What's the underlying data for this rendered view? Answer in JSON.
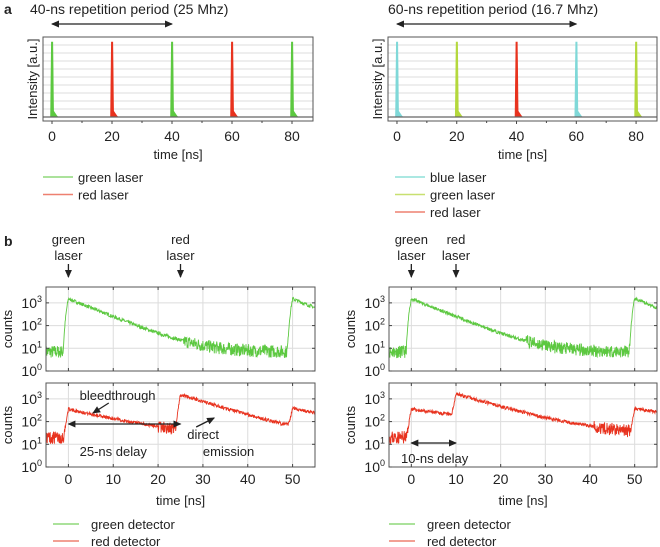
{
  "panel_labels": {
    "a": "a",
    "b": "b"
  },
  "colors": {
    "green": "#5cc840",
    "red": "#e8321e",
    "blue": "#7fd8d8",
    "lime": "#b4d83c",
    "grid": "#dcdcdc",
    "frame": "#555555"
  },
  "chart_data": [
    {
      "id": "a-left",
      "type": "line",
      "title": "40-ns repetition period (25 Mhz)",
      "xlabel": "time [ns]",
      "ylabel": "Intensity [a.u.]",
      "xlim": [
        -3,
        87
      ],
      "xticks": [
        0,
        20,
        40,
        60,
        80
      ],
      "xtick_labels": [
        "0",
        "20",
        "40",
        "60",
        "80"
      ],
      "period_arrow": [
        0,
        40
      ],
      "pulses": [
        {
          "t": 0,
          "series": "green laser"
        },
        {
          "t": 20,
          "series": "red laser"
        },
        {
          "t": 40,
          "series": "green laser"
        },
        {
          "t": 60,
          "series": "red laser"
        },
        {
          "t": 80,
          "series": "green laser"
        }
      ],
      "legend": [
        {
          "label": "green laser",
          "color": "#8fd87a"
        },
        {
          "label": "red laser",
          "color": "#ee8070"
        }
      ],
      "grid": true
    },
    {
      "id": "a-right",
      "type": "line",
      "title": "60-ns repetition period (16.7 Mhz)",
      "xlabel": "time [ns]",
      "ylabel": "Intensity [a.u.]",
      "xlim": [
        -3,
        87
      ],
      "xticks": [
        0,
        20,
        40,
        60,
        80
      ],
      "xtick_labels": [
        "0",
        "20",
        "40",
        "60",
        "80"
      ],
      "period_arrow": [
        0,
        60
      ],
      "pulses": [
        {
          "t": 0,
          "series": "blue laser"
        },
        {
          "t": 20,
          "series": "green laser"
        },
        {
          "t": 40,
          "series": "red laser"
        },
        {
          "t": 60,
          "series": "blue laser"
        },
        {
          "t": 80,
          "series": "green laser"
        }
      ],
      "legend": [
        {
          "label": "blue laser",
          "color": "#8fe0d8"
        },
        {
          "label": "green laser",
          "color": "#c8e070"
        },
        {
          "label": "red laser",
          "color": "#ee8070"
        }
      ],
      "grid": true
    },
    {
      "id": "b-left",
      "type": "line",
      "xlabel": "time [ns]",
      "ylabel": "counts",
      "yscale": "log",
      "ylim": [
        1,
        5000
      ],
      "yticks": [
        1,
        10,
        100,
        1000
      ],
      "ytick_labels": [
        "10^0",
        "10^1",
        "10^2",
        "10^3"
      ],
      "xlim": [
        -5,
        55
      ],
      "xticks": [
        0,
        10,
        20,
        30,
        40,
        50
      ],
      "xtick_labels": [
        "0",
        "10",
        "20",
        "30",
        "40",
        "50"
      ],
      "laser_markers": [
        {
          "label_line1": "green",
          "label_line2": "laser",
          "t": 0
        },
        {
          "label_line1": "red",
          "label_line2": "laser",
          "t": 25
        }
      ],
      "green_detector": {
        "pulses": [
          {
            "t": 0,
            "peak": 1500,
            "tau": 5.5
          },
          {
            "t": 50,
            "peak": 1500,
            "tau": 5.5
          }
        ],
        "background": 7
      },
      "red_detector": {
        "pulses": [
          {
            "t": 0,
            "peak": 330,
            "tau": 9.5
          },
          {
            "t": 25,
            "peak": 1500,
            "tau": 7
          },
          {
            "t": 50,
            "peak": 330,
            "tau": 9.5
          }
        ],
        "background": 20
      },
      "annotations": {
        "bleedthrough": "bleedthrough",
        "delay": "25-ns delay",
        "direct_1": "direct",
        "direct_2": "emission",
        "delay_arrow": [
          0,
          25
        ]
      },
      "legend": [
        {
          "label": "green detector",
          "color": "#8fd87a"
        },
        {
          "label": "red detector",
          "color": "#ee8070"
        }
      ],
      "grid": true
    },
    {
      "id": "b-right",
      "type": "line",
      "xlabel": "time [ns]",
      "ylabel": "counts",
      "yscale": "log",
      "ylim": [
        1,
        5000
      ],
      "yticks": [
        1,
        10,
        100,
        1000
      ],
      "ytick_labels": [
        "10^0",
        "10^1",
        "10^2",
        "10^3"
      ],
      "xlim": [
        -5,
        55
      ],
      "xticks": [
        0,
        10,
        20,
        30,
        40,
        50
      ],
      "xtick_labels": [
        "0",
        "10",
        "20",
        "30",
        "40",
        "50"
      ],
      "laser_markers": [
        {
          "label_line1": "green",
          "label_line2": "laser",
          "t": 0
        },
        {
          "label_line1": "red",
          "label_line2": "laser",
          "t": 10
        }
      ],
      "green_detector": {
        "pulses": [
          {
            "t": 0,
            "peak": 1500,
            "tau": 5.5
          },
          {
            "t": 50,
            "peak": 1500,
            "tau": 5.5
          }
        ],
        "background": 7
      },
      "red_detector": {
        "pulses": [
          {
            "t": 0,
            "peak": 330,
            "tau": 15
          },
          {
            "t": 10,
            "peak": 1500,
            "tau": 7
          },
          {
            "t": 50,
            "peak": 330,
            "tau": 15
          }
        ],
        "background": 20
      },
      "annotations": {
        "delay": "10-ns delay",
        "delay_arrow": [
          0,
          10
        ]
      },
      "legend": [
        {
          "label": "green detector",
          "color": "#8fd87a"
        },
        {
          "label": "red detector",
          "color": "#ee8070"
        }
      ],
      "grid": true
    }
  ]
}
